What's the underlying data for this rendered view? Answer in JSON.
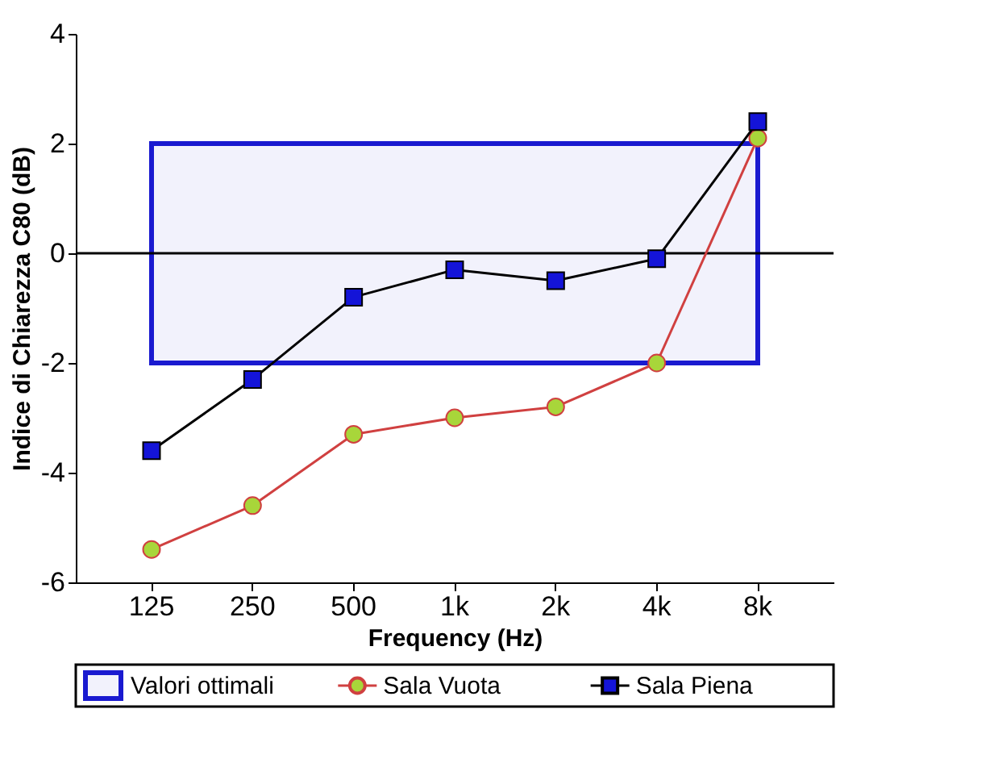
{
  "chart_data": {
    "type": "line",
    "xlabel": "Frequency (Hz)",
    "ylabel": "Indice di Chiarezza C80 (dB)",
    "categories": [
      "125",
      "250",
      "500",
      "1k",
      "2k",
      "4k",
      "8k"
    ],
    "series": [
      {
        "name": "Sala Vuota",
        "color": "#a8d63a",
        "marker": "circle",
        "values": [
          -5.4,
          -4.6,
          -3.3,
          -3.0,
          -2.8,
          -2.0,
          2.1
        ]
      },
      {
        "name": "Sala Piena",
        "color": "#1414d8",
        "marker": "square",
        "values": [
          -3.6,
          -2.3,
          -0.8,
          -0.3,
          -0.5,
          -0.1,
          2.4
        ]
      }
    ],
    "bands": [
      {
        "axis": "y",
        "from": -2,
        "to": 2,
        "label": "Valori ottimali",
        "color": "#1a1ad0"
      }
    ],
    "ref_lines": [
      {
        "axis": "y",
        "value": 0,
        "label": null,
        "color": "#000000"
      }
    ],
    "ylim": [
      -6,
      4
    ],
    "yticks": [
      -6,
      -4,
      -2,
      0,
      2,
      4
    ],
    "grid": false,
    "legend": "bottom",
    "line_style": "solid"
  }
}
